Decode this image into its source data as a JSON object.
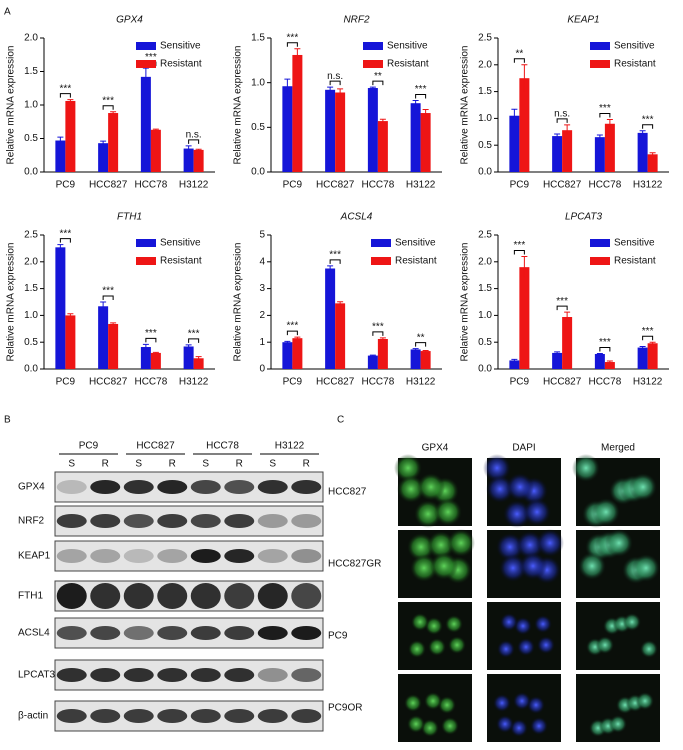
{
  "panel_labels": [
    "A",
    "B",
    "C"
  ],
  "chart_data": [
    {
      "type": "bar",
      "title": "GPX4",
      "y_label": "Relative mRNA expression",
      "categories": [
        "PC9",
        "HCC827",
        "HCC78",
        "H3122"
      ],
      "series": [
        {
          "name": "Sensitive",
          "color": "#1515d8",
          "values": [
            0.47,
            0.43,
            1.42,
            0.35
          ],
          "errors": [
            0.05,
            0.03,
            0.13,
            0.04
          ]
        },
        {
          "name": "Resistant",
          "color": "#ee1515",
          "values": [
            1.06,
            0.88,
            0.63,
            0.33
          ],
          "errors": [
            0.02,
            0.02,
            0.01,
            0.01
          ]
        }
      ],
      "significance": [
        "***",
        "***",
        "***",
        "n.s."
      ],
      "ylim": [
        0,
        2
      ],
      "yticks": [
        {
          "value": 0,
          "label": "0.0"
        },
        {
          "value": 0.5,
          "label": "0.5"
        },
        {
          "value": 1,
          "label": "1.0"
        },
        {
          "value": 1.5,
          "label": "1.5"
        },
        {
          "value": 2,
          "label": "2.0"
        }
      ]
    },
    {
      "type": "bar",
      "title": "NRF2",
      "y_label": "Relative mRNA expression",
      "categories": [
        "PC9",
        "HCC827",
        "HCC78",
        "H3122"
      ],
      "series": [
        {
          "name": "Sensitive",
          "color": "#1515d8",
          "values": [
            0.96,
            0.92,
            0.94,
            0.77
          ],
          "errors": [
            0.08,
            0.03,
            0.01,
            0.03
          ]
        },
        {
          "name": "Resistant",
          "color": "#ee1515",
          "values": [
            1.31,
            0.89,
            0.57,
            0.66
          ],
          "errors": [
            0.07,
            0.04,
            0.02,
            0.04
          ]
        }
      ],
      "significance": [
        "***",
        "n.s.",
        "**",
        "***"
      ],
      "ylim": [
        0,
        1.5
      ],
      "yticks": [
        {
          "value": 0,
          "label": "0.0"
        },
        {
          "value": 0.5,
          "label": "0.5"
        },
        {
          "value": 1,
          "label": "1.0"
        },
        {
          "value": 1.5,
          "label": "1.5"
        }
      ]
    },
    {
      "type": "bar",
      "title": "KEAP1",
      "y_label": "Relative mRNA expression",
      "categories": [
        "PC9",
        "HCC827",
        "HCC78",
        "H3122"
      ],
      "series": [
        {
          "name": "Sensitive",
          "color": "#1515d8",
          "values": [
            1.05,
            0.67,
            0.65,
            0.73
          ],
          "errors": [
            0.12,
            0.04,
            0.04,
            0.04
          ]
        },
        {
          "name": "Resistant",
          "color": "#ee1515",
          "values": [
            1.75,
            0.78,
            0.9,
            0.33
          ],
          "errors": [
            0.25,
            0.1,
            0.08,
            0.03
          ]
        }
      ],
      "significance": [
        "**",
        "n.s.",
        "***",
        "***"
      ],
      "ylim": [
        0,
        2.5
      ],
      "yticks": [
        {
          "value": 0,
          "label": "0.0"
        },
        {
          "value": 0.5,
          "label": "0.5"
        },
        {
          "value": 1,
          "label": "1.0"
        },
        {
          "value": 1.5,
          "label": "1.5"
        },
        {
          "value": 2,
          "label": "2.0"
        },
        {
          "value": 2.5,
          "label": "2.5"
        }
      ]
    },
    {
      "type": "bar",
      "title": "FTH1",
      "y_label": "Relative mRNA expression",
      "categories": [
        "PC9",
        "HCC827",
        "HCC78",
        "H3122"
      ],
      "series": [
        {
          "name": "Sensitive",
          "color": "#1515d8",
          "values": [
            2.27,
            1.17,
            0.41,
            0.42
          ],
          "errors": [
            0.05,
            0.08,
            0.05,
            0.03
          ]
        },
        {
          "name": "Resistant",
          "color": "#ee1515",
          "values": [
            1.0,
            0.84,
            0.3,
            0.2
          ],
          "errors": [
            0.03,
            0.02,
            0.01,
            0.03
          ]
        }
      ],
      "significance": [
        "***",
        "***",
        "***",
        "***"
      ],
      "ylim": [
        0,
        2.5
      ],
      "yticks": [
        {
          "value": 0,
          "label": "0.0"
        },
        {
          "value": 0.5,
          "label": "0.5"
        },
        {
          "value": 1,
          "label": "1.0"
        },
        {
          "value": 1.5,
          "label": "1.5"
        },
        {
          "value": 2,
          "label": "2.0"
        },
        {
          "value": 2.5,
          "label": "2.5"
        }
      ]
    },
    {
      "type": "bar",
      "title": "ACSL4",
      "y_label": "Relative mRNA expression",
      "categories": [
        "PC9",
        "HCC827",
        "HCC78",
        "H3122"
      ],
      "series": [
        {
          "name": "Sensitive",
          "color": "#1515d8",
          "values": [
            1.0,
            3.75,
            0.5,
            0.73
          ],
          "errors": [
            0.03,
            0.1,
            0.02,
            0.03
          ]
        },
        {
          "name": "Resistant",
          "color": "#ee1515",
          "values": [
            1.15,
            2.45,
            1.12,
            0.67
          ],
          "errors": [
            0.04,
            0.06,
            0.04,
            0.02
          ]
        }
      ],
      "significance": [
        "***",
        "***",
        "***",
        "**"
      ],
      "ylim": [
        0,
        5
      ],
      "yticks": [
        0,
        1,
        2,
        3,
        4,
        5
      ]
    },
    {
      "type": "bar",
      "title": "LPCAT3",
      "y_label": "Relative mRNA expression",
      "categories": [
        "PC9",
        "HCC827",
        "HCC78",
        "H3122"
      ],
      "series": [
        {
          "name": "Sensitive",
          "color": "#1515d8",
          "values": [
            0.16,
            0.3,
            0.28,
            0.4
          ],
          "errors": [
            0.02,
            0.02,
            0.01,
            0.02
          ]
        },
        {
          "name": "Resistant",
          "color": "#ee1515",
          "values": [
            1.9,
            0.97,
            0.13,
            0.48
          ],
          "errors": [
            0.2,
            0.09,
            0.02,
            0.02
          ]
        }
      ],
      "significance": [
        "***",
        "***",
        "***",
        "***"
      ],
      "ylim": [
        0,
        2.5
      ],
      "yticks": [
        {
          "value": 0,
          "label": "0.0"
        },
        {
          "value": 0.5,
          "label": "0.5"
        },
        {
          "value": 1,
          "label": "1.0"
        },
        {
          "value": 1.5,
          "label": "1.5"
        },
        {
          "value": 2,
          "label": "2.0"
        },
        {
          "value": 2.5,
          "label": "2.5"
        }
      ]
    }
  ],
  "blot": {
    "cell_lines": [
      "PC9",
      "HCC827",
      "HCC78",
      "H3122"
    ],
    "lanes": [
      "S",
      "R",
      "S",
      "R",
      "S",
      "R",
      "S",
      "R"
    ],
    "proteins": [
      "GPX4",
      "NRF2",
      "KEAP1",
      "FTH1",
      "ACSL4",
      "LPCAT3",
      "β-actin"
    ]
  },
  "microscopy": {
    "channels": [
      "GPX4",
      "DAPI",
      "Merged"
    ],
    "samples": [
      "HCC827",
      "HCC827GR",
      "PC9",
      "PC9OR"
    ]
  }
}
